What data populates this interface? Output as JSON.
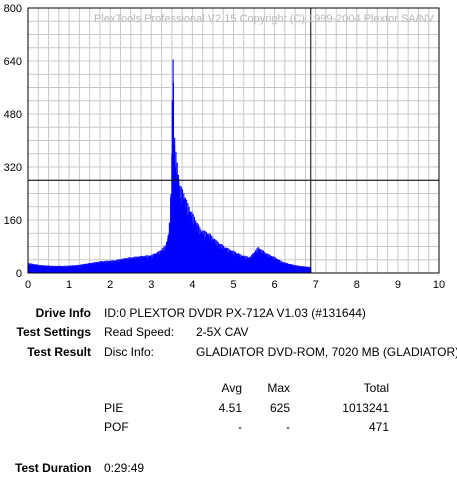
{
  "chart_data": {
    "type": "area",
    "title": "PlexTools Professional V2.15 Copyright (C) 1999-2004 Plextor SA/NV",
    "xlim": [
      0,
      10
    ],
    "ylim": [
      0,
      800
    ],
    "x_ticks": [
      "0",
      "1",
      "2",
      "3",
      "4",
      "5",
      "6",
      "7",
      "8",
      "9",
      "10"
    ],
    "y_ticks": [
      "0",
      "160",
      "320",
      "480",
      "640",
      "800"
    ],
    "grid": true,
    "threshold_line_y": 280,
    "end_marker_x": 6.88,
    "series": [
      {
        "color": "#0000ff",
        "x": [
          0.0,
          0.3,
          0.6,
          0.9,
          1.2,
          1.5,
          1.8,
          2.1,
          2.4,
          2.7,
          3.0,
          3.2,
          3.35,
          3.42,
          3.46,
          3.5,
          3.52,
          3.56,
          3.6,
          3.7,
          3.8,
          3.9,
          4.0,
          4.1,
          4.2,
          4.4,
          4.6,
          4.8,
          5.0,
          5.2,
          5.4,
          5.6,
          5.8,
          6.0,
          6.2,
          6.4,
          6.6,
          6.88
        ],
        "y": [
          25,
          20,
          18,
          18,
          20,
          25,
          30,
          32,
          38,
          42,
          45,
          55,
          70,
          100,
          150,
          300,
          625,
          350,
          300,
          220,
          200,
          170,
          150,
          130,
          110,
          100,
          80,
          65,
          55,
          45,
          40,
          65,
          50,
          40,
          28,
          22,
          18,
          15
        ]
      }
    ]
  },
  "info": {
    "drive_info_label": "Drive Info",
    "drive_info_value": "ID:0 PLEXTOR DVDR PX-712A V1.03 (#131644)",
    "test_settings_label": "Test Settings",
    "read_speed_label": "Read Speed:",
    "read_speed_value": "2-5X CAV",
    "test_result_label": "Test Result",
    "disc_info_label": "Disc Info:",
    "disc_info_value": "GLADIATOR DVD-ROM, 7020 MB (GLADIATOR)",
    "test_duration_label": "Test Duration",
    "test_duration_value": "0:29:49"
  },
  "results": {
    "headers": {
      "avg": "Avg",
      "max": "Max",
      "total": "Total"
    },
    "rows": [
      {
        "name": "PIE",
        "avg": "4.51",
        "max": "625",
        "total": "1013241"
      },
      {
        "name": "POF",
        "avg": "-",
        "max": "-",
        "total": "471"
      }
    ]
  }
}
